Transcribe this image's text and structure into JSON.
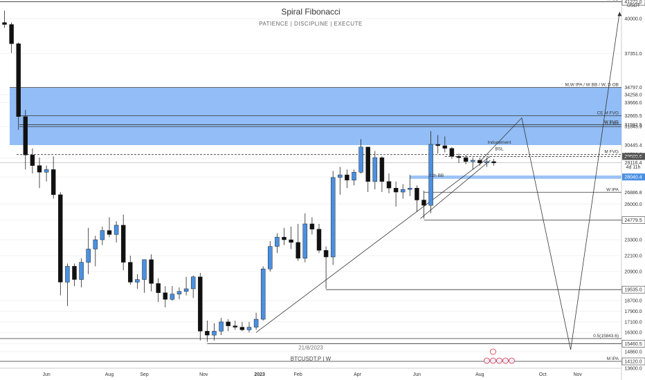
{
  "header": {
    "title": "Spiral Fibonacci",
    "subtitle": "PATIENCE  |  DISCIPLINE  |  EXECUTE",
    "footer_date": "21/8/2023",
    "footer_symbol": "BTCUSDT.P | W",
    "currency_unit": "USDT"
  },
  "chart_data": {
    "type": "candlestick",
    "ylim": [
      13600,
      41400
    ],
    "y_ticks": [
      40000,
      37351,
      34258,
      33666,
      31843.9,
      29470,
      28040.4,
      26000,
      24779.5,
      23300,
      22100,
      20900,
      18700,
      17900,
      17100,
      16300,
      15460.5,
      14860,
      14120,
      13600
    ],
    "x_ticks": [
      {
        "label": "Jun",
        "index": 6
      },
      {
        "label": "Aug",
        "index": 15
      },
      {
        "label": "Sep",
        "index": 20
      },
      {
        "label": "Nov",
        "index": 28.5
      },
      {
        "label": "2023",
        "index": 36.5
      },
      {
        "label": "Feb",
        "index": 42
      },
      {
        "label": "Apr",
        "index": 50.5
      },
      {
        "label": "Jun",
        "index": 59
      },
      {
        "label": "Aug",
        "index": 68
      },
      {
        "label": "Oct",
        "index": 77
      },
      {
        "label": "Nov",
        "index": 82
      }
    ],
    "candles": [
      [
        39700,
        40600,
        39300,
        39550
      ],
      [
        39550,
        39700,
        37400,
        38100
      ],
      [
        38100,
        38200,
        31600,
        32600
      ],
      [
        32600,
        33100,
        28600,
        29700
      ],
      [
        29700,
        30200,
        28300,
        28900
      ],
      [
        28900,
        29500,
        27200,
        28400
      ],
      [
        28400,
        28900,
        27700,
        28600
      ],
      [
        28600,
        29600,
        26400,
        26700
      ],
      [
        26700,
        26900,
        19100,
        20100
      ],
      [
        20100,
        21500,
        18300,
        21300
      ],
      [
        21300,
        21500,
        19800,
        20300
      ],
      [
        20300,
        21900,
        19700,
        21600
      ],
      [
        21600,
        24200,
        20700,
        22600
      ],
      [
        22600,
        23600,
        21300,
        23300
      ],
      [
        23300,
        24300,
        22900,
        24000
      ],
      [
        24000,
        25000,
        23500,
        23700
      ],
      [
        23700,
        24700,
        23100,
        24400
      ],
      [
        24400,
        25200,
        21000,
        21600
      ],
      [
        21600,
        22100,
        19900,
        20100
      ],
      [
        20100,
        20700,
        19600,
        20300
      ],
      [
        20300,
        21700,
        19300,
        21800
      ],
      [
        21800,
        22200,
        19400,
        20000
      ],
      [
        20000,
        20400,
        18600,
        19300
      ],
      [
        19300,
        19800,
        18200,
        18800
      ],
      [
        18800,
        19800,
        18700,
        19200
      ],
      [
        19200,
        19700,
        18800,
        19400
      ],
      [
        19400,
        20500,
        19100,
        19600
      ],
      [
        19600,
        20600,
        18900,
        20500
      ],
      [
        20500,
        20800,
        15700,
        16400
      ],
      [
        16400,
        17200,
        15600,
        16100
      ],
      [
        16100,
        17000,
        15700,
        16400
      ],
      [
        16400,
        17400,
        16100,
        17100
      ],
      [
        17100,
        17300,
        16400,
        16800
      ],
      [
        16800,
        17200,
        16500,
        16700
      ],
      [
        16700,
        17100,
        16400,
        16500
      ],
      [
        16500,
        17100,
        16300,
        16700
      ],
      [
        16700,
        17800,
        16500,
        17300
      ],
      [
        17300,
        21300,
        17200,
        21100
      ],
      [
        21100,
        23200,
        20900,
        22800
      ],
      [
        22800,
        23800,
        22300,
        23500
      ],
      [
        23500,
        24200,
        22900,
        23300
      ],
      [
        23300,
        24300,
        22600,
        23100
      ],
      [
        23100,
        24500,
        21700,
        21900
      ],
      [
        21900,
        25300,
        21600,
        24500
      ],
      [
        24500,
        25000,
        23700,
        24100
      ],
      [
        24100,
        24500,
        22300,
        22500
      ],
      [
        22500,
        22800,
        19600,
        22000
      ],
      [
        22000,
        28500,
        21400,
        28000
      ],
      [
        28000,
        28800,
        26700,
        28200
      ],
      [
        28200,
        28600,
        27200,
        27800
      ],
      [
        27800,
        28600,
        27400,
        28400
      ],
      [
        28400,
        30900,
        28300,
        30300
      ],
      [
        30300,
        30300,
        26900,
        27700
      ],
      [
        27700,
        30000,
        27100,
        29500
      ],
      [
        29500,
        29600,
        26900,
        27700
      ],
      [
        27700,
        28300,
        26800,
        27200
      ],
      [
        27200,
        27700,
        25800,
        26900
      ],
      [
        26900,
        27500,
        26400,
        27100
      ],
      [
        27100,
        28200,
        26600,
        27200
      ],
      [
        27200,
        27400,
        25400,
        26300
      ],
      [
        26300,
        27000,
        24900,
        25900
      ],
      [
        25900,
        31500,
        25300,
        30500
      ],
      [
        30500,
        31200,
        29800,
        30400
      ],
      [
        30400,
        31100,
        29900,
        30200
      ],
      [
        30200,
        30300,
        29400,
        29600
      ],
      [
        29600,
        29800,
        29100,
        29500
      ],
      [
        29500,
        29700,
        29000,
        29200
      ],
      [
        29200,
        29500,
        28600,
        29300
      ],
      [
        29300,
        29500,
        28900,
        29100
      ],
      [
        29100,
        29500,
        28800,
        29200
      ],
      [
        29200,
        29400,
        28900,
        29100
      ]
    ],
    "zones": [
      {
        "label": "M,W IPA / W BB / W, D OB",
        "from": 30445.4,
        "to": 34797.0
      },
      {
        "label": "12h BB",
        "from": 27900,
        "to": 28150
      }
    ],
    "levels": [
      {
        "label": "W OB",
        "price": 41272.0
      },
      {
        "label": "M,W IPA / W BB / W, D OB",
        "price": 34797.0
      },
      {
        "label": "CE M FVG",
        "price": 32665.5
      },
      {
        "label": "W FVG",
        "price": 31982.5
      },
      {
        "label": "D FVG",
        "price": 31843.9
      },
      {
        "label": "M FVG",
        "price": 29732.3
      },
      {
        "label": "",
        "price": 29590.6
      },
      {
        "label": "W IPA",
        "price": 26886.8
      },
      {
        "label": "",
        "price": 24779.5
      },
      {
        "label": "",
        "price": 19535.0
      },
      {
        "label": "0.5(15843.6)",
        "price": 15843.6
      },
      {
        "label": "",
        "price": 15460.5
      },
      {
        "label": "M IPA",
        "price": 14120.0
      }
    ],
    "annotations": [
      {
        "text": "Inducement",
        "index": 70,
        "price": 30550
      },
      {
        "text": "BSL",
        "index": 70,
        "price": 30050
      },
      {
        "text": "12h BB",
        "index": 61,
        "price": 28040
      }
    ],
    "projection": [
      [
        68,
        29200
      ],
      [
        74,
        32500
      ],
      [
        81,
        15000
      ],
      [
        88,
        40500
      ]
    ],
    "price_labels": [
      {
        "text": "41272.0",
        "price": 41272.0,
        "style": "box"
      },
      {
        "text": "40000.0",
        "price": 40000.0,
        "style": "plain"
      },
      {
        "text": "37351.0",
        "price": 37351.0,
        "style": "plain"
      },
      {
        "text": "34797.0",
        "price": 34797.0,
        "style": "plain"
      },
      {
        "text": "34258.0",
        "price": 34258.0,
        "style": "plain"
      },
      {
        "text": "33666.0",
        "price": 33666.0,
        "style": "plain"
      },
      {
        "text": "32665.5",
        "price": 32665.5,
        "style": "plain"
      },
      {
        "text": "31982.5",
        "price": 31982.5,
        "style": "plain"
      },
      {
        "text": "31843.9",
        "price": 31843.9,
        "style": "plain"
      },
      {
        "text": "30445.4",
        "price": 30445.4,
        "style": "plain"
      },
      {
        "text": "29732.3",
        "price": 29732.3,
        "style": "plain"
      },
      {
        "text": "29730.1",
        "price": 29730.1,
        "style": "plain"
      },
      {
        "text": "29590.6",
        "price": 29590.6,
        "style": "dark"
      },
      {
        "text": "29470.0",
        "price": 29470.0,
        "style": "plain"
      },
      {
        "text": "29116.4",
        "price": 29116.4,
        "style": "plain"
      },
      {
        "text": "4d 11h",
        "price": 28800,
        "style": "plain"
      },
      {
        "text": "28040.4",
        "price": 28040.4,
        "style": "blue"
      },
      {
        "text": "26886.8",
        "price": 26886.8,
        "style": "plain"
      },
      {
        "text": "26000.0",
        "price": 26000.0,
        "style": "plain"
      },
      {
        "text": "24779.5",
        "price": 24779.5,
        "style": "box"
      },
      {
        "text": "23300.0",
        "price": 23300.0,
        "style": "plain"
      },
      {
        "text": "22100.0",
        "price": 22100.0,
        "style": "plain"
      },
      {
        "text": "20900.0",
        "price": 20900.0,
        "style": "plain"
      },
      {
        "text": "19535.0",
        "price": 19535.0,
        "style": "box"
      },
      {
        "text": "18700.0",
        "price": 18700.0,
        "style": "plain"
      },
      {
        "text": "17900.0",
        "price": 17900.0,
        "style": "plain"
      },
      {
        "text": "17100.0",
        "price": 17100.0,
        "style": "plain"
      },
      {
        "text": "16300.0",
        "price": 16300.0,
        "style": "plain"
      },
      {
        "text": "15460.5",
        "price": 15460.5,
        "style": "box"
      },
      {
        "text": "14860.0",
        "price": 14860.0,
        "style": "plain"
      },
      {
        "text": "14120.0",
        "price": 14120.0,
        "style": "box"
      },
      {
        "text": "13600.0",
        "price": 13600.0,
        "style": "plain"
      }
    ],
    "colors": {
      "up": "#4a90e2",
      "down": "#111111",
      "zone": "#7fb2f5",
      "line": "#333333"
    }
  }
}
